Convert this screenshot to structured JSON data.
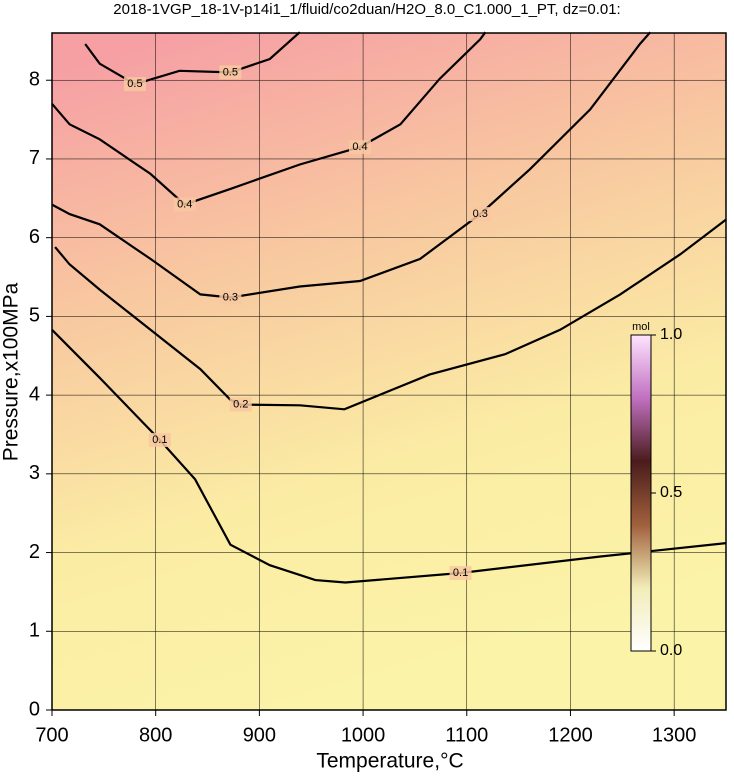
{
  "chart_data": {
    "type": "contour",
    "title": "2018-1VGP_18-1V-p14i1_1/fluid/co2duan/H2O_8.0_C1.000_1_PT, dz=0.01:",
    "x_label": "Temperature,°C",
    "y_label": "Pressure,x100MPa",
    "xlim": [
      700,
      1350
    ],
    "ylim": [
      0,
      8.6
    ],
    "xticks": [
      700,
      800,
      900,
      1000,
      1100,
      1200,
      1300
    ],
    "yticks": [
      0,
      1,
      2,
      3,
      4,
      5,
      6,
      7,
      8
    ],
    "grid": true,
    "background_colors": [
      "#f6a0a4",
      "#f8c8a0",
      "#fbeca4",
      "#fbf4a8"
    ],
    "contour_color": "#000000",
    "contours": [
      {
        "level": 0.1,
        "x": [
          700,
          746,
          804,
          838,
          872,
          910,
          954,
          983,
          1094,
          1229,
          1350
        ],
        "y": [
          4.83,
          4.22,
          3.43,
          2.93,
          2.1,
          1.84,
          1.65,
          1.62,
          1.74,
          1.95,
          2.12
        ]
      },
      {
        "level": 0.2,
        "x": [
          703,
          717,
          746,
          795,
          843,
          872,
          882,
          939,
          982,
          1064,
          1137,
          1190,
          1248,
          1306,
          1350
        ],
        "y": [
          5.88,
          5.66,
          5.34,
          4.83,
          4.33,
          3.94,
          3.88,
          3.87,
          3.82,
          4.26,
          4.52,
          4.83,
          5.28,
          5.79,
          6.23
        ]
      },
      {
        "level": 0.3,
        "x": [
          700,
          717,
          746,
          795,
          843,
          872,
          939,
          997,
          1055,
          1113,
          1161,
          1219,
          1267,
          1277
        ],
        "y": [
          6.42,
          6.3,
          6.17,
          5.73,
          5.28,
          5.24,
          5.38,
          5.45,
          5.73,
          6.3,
          6.87,
          7.63,
          8.46,
          8.61
        ]
      },
      {
        "level": 0.4,
        "x": [
          700,
          717,
          746,
          795,
          828,
          872,
          939,
          997,
          1036,
          1074,
          1113,
          1118
        ],
        "y": [
          7.7,
          7.44,
          7.25,
          6.81,
          6.42,
          6.62,
          6.93,
          7.15,
          7.44,
          8.02,
          8.52,
          8.61
        ]
      },
      {
        "level": 0.5,
        "x": [
          732,
          746,
          780,
          823,
          872,
          910,
          939
        ],
        "y": [
          8.46,
          8.21,
          7.95,
          8.12,
          8.1,
          8.27,
          8.61
        ]
      }
    ],
    "colorbar": {
      "label": "mol",
      "lim": [
        0,
        1
      ],
      "ticks": [
        {
          "value": 0,
          "label": "0.0"
        },
        {
          "value": 0.5,
          "label": "0.5"
        },
        {
          "value": 1,
          "label": "1.0"
        }
      ],
      "colors": [
        "#ffffff",
        "#f2ecb8",
        "#a0603c",
        "#4a1c1c",
        "#c070c0",
        "#ffe4ff"
      ]
    }
  }
}
